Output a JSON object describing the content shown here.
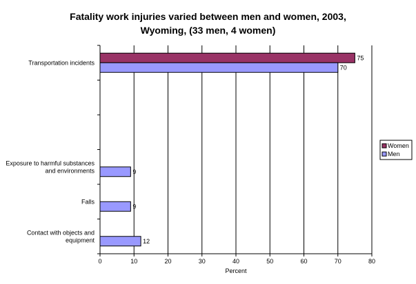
{
  "chart_data": {
    "type": "bar",
    "orientation": "horizontal",
    "title_lines": [
      "Fatality work injuries varied between men and women, 2003,",
      "Wyoming,  (33 men, 4 women)"
    ],
    "xlabel": "Percent",
    "ylabel": "",
    "xlim": [
      0,
      80
    ],
    "xticks": [
      0,
      10,
      20,
      30,
      40,
      50,
      60,
      70,
      80
    ],
    "grid": "vertical",
    "legend_position": "right",
    "categories": [
      {
        "label_lines": [
          "Transportation incidents"
        ]
      },
      {
        "label_lines": [
          ""
        ]
      },
      {
        "label_lines": [
          ""
        ]
      },
      {
        "label_lines": [
          "Exposure to harmful substances",
          "and environments"
        ]
      },
      {
        "label_lines": [
          "Falls"
        ]
      },
      {
        "label_lines": [
          "Contact with objects and",
          "equipment"
        ]
      }
    ],
    "series": [
      {
        "name": "Women",
        "color": "#993366",
        "values": [
          75,
          null,
          null,
          null,
          null,
          null
        ],
        "labels": [
          "75",
          "",
          "",
          "",
          "",
          ""
        ]
      },
      {
        "name": "Men",
        "color": "#9999ff",
        "values": [
          70,
          null,
          null,
          9,
          9,
          12
        ],
        "labels": [
          "70",
          "",
          "",
          "9",
          "9",
          "12"
        ]
      }
    ]
  }
}
